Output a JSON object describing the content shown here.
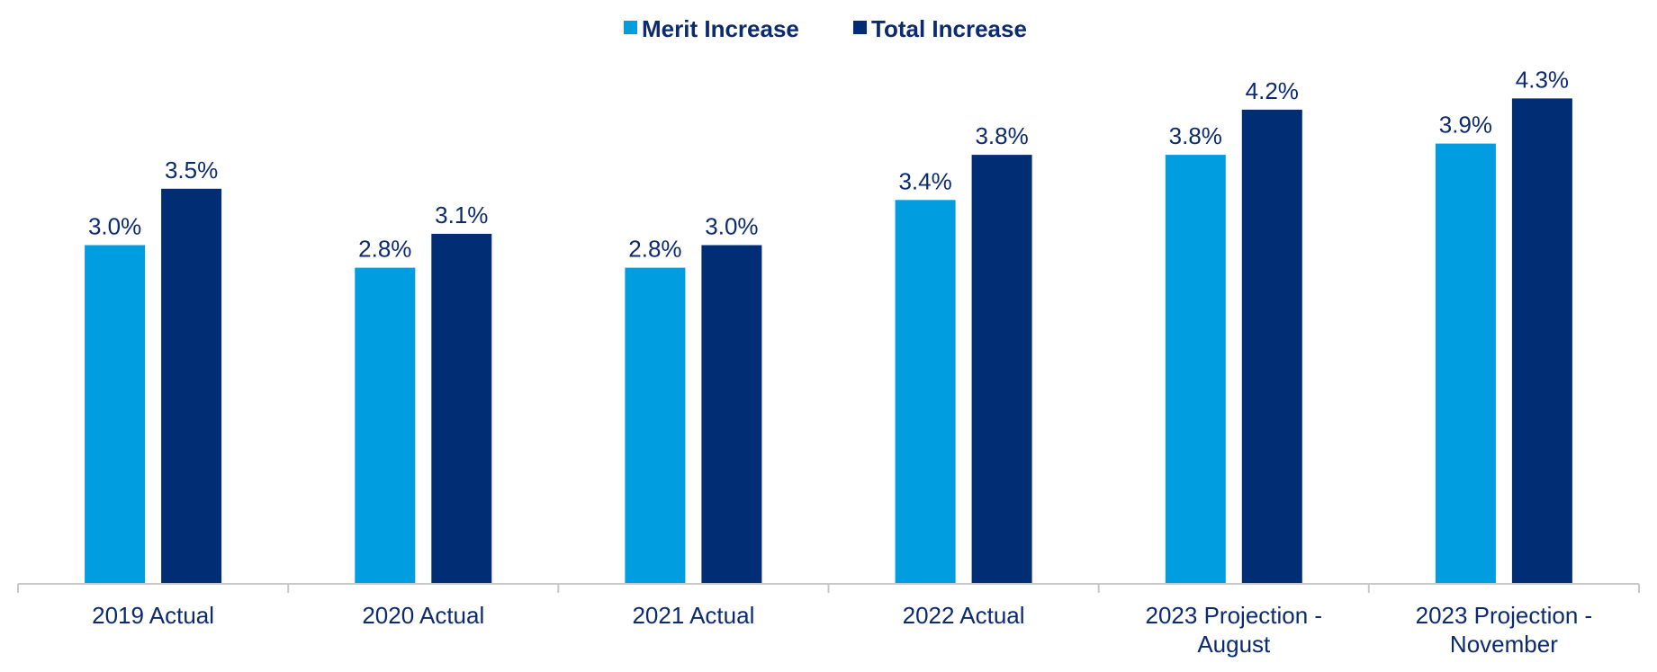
{
  "chart_data": {
    "type": "bar",
    "title": "",
    "xlabel": "",
    "ylabel": "",
    "ylim": [
      0,
      4.4
    ],
    "grid": false,
    "legend_position": "top-center",
    "categories": [
      [
        "2019 Actual"
      ],
      [
        "2020 Actual"
      ],
      [
        "2021 Actual"
      ],
      [
        "2022 Actual"
      ],
      [
        "2023 Projection -",
        "August"
      ],
      [
        "2023 Projection -",
        "November"
      ]
    ],
    "series": [
      {
        "name": "Merit Increase",
        "color": "#009de0",
        "values": [
          3.0,
          2.8,
          2.8,
          3.4,
          3.8,
          3.9
        ],
        "labels": [
          "3.0%",
          "2.8%",
          "2.8%",
          "3.4%",
          "3.8%",
          "3.9%"
        ]
      },
      {
        "name": "Total Increase",
        "color": "#002d74",
        "values": [
          3.5,
          3.1,
          3.0,
          3.8,
          4.2,
          4.3
        ],
        "labels": [
          "3.5%",
          "3.1%",
          "3.0%",
          "3.8%",
          "4.2%",
          "4.3%"
        ]
      }
    ]
  }
}
